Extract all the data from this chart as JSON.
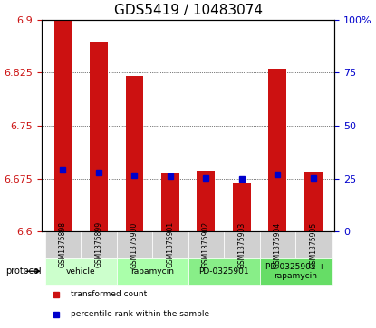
{
  "title": "GDS5419 / 10483074",
  "samples": [
    "GSM1375898",
    "GSM1375899",
    "GSM1375900",
    "GSM1375901",
    "GSM1375902",
    "GSM1375903",
    "GSM1375904",
    "GSM1375905"
  ],
  "bar_tops": [
    6.9,
    6.868,
    6.82,
    6.683,
    6.686,
    6.668,
    6.83,
    6.685
  ],
  "bar_bottom": 6.6,
  "blue_dots": [
    6.687,
    6.683,
    6.68,
    6.678,
    6.676,
    6.675,
    6.681,
    6.676
  ],
  "ylim": [
    6.6,
    6.9
  ],
  "yticks_left": [
    6.6,
    6.675,
    6.75,
    6.825,
    6.9
  ],
  "yticks_right": [
    0,
    25,
    50,
    75,
    100
  ],
  "ytick_right_labels": [
    "0",
    "25",
    "50",
    "75",
    "100%"
  ],
  "bar_color": "#cc1111",
  "dot_color": "#0000cc",
  "grid_color": "#000000",
  "groups": [
    {
      "label": "vehicle",
      "indices": [
        0,
        1
      ],
      "color": "#ccffcc"
    },
    {
      "label": "rapamycin",
      "indices": [
        2,
        3
      ],
      "color": "#aaffaa"
    },
    {
      "label": "PD-0325901",
      "indices": [
        4,
        5
      ],
      "color": "#88ee88"
    },
    {
      "label": "PD-0325901 +\nrapamycin",
      "indices": [
        6,
        7
      ],
      "color": "#66dd66"
    }
  ],
  "protocol_label": "protocol",
  "legend_items": [
    {
      "color": "#cc1111",
      "label": "transformed count"
    },
    {
      "color": "#0000cc",
      "label": "percentile rank within the sample"
    }
  ],
  "bar_width": 0.5,
  "title_fontsize": 11,
  "tick_fontsize": 8,
  "label_fontsize": 8
}
